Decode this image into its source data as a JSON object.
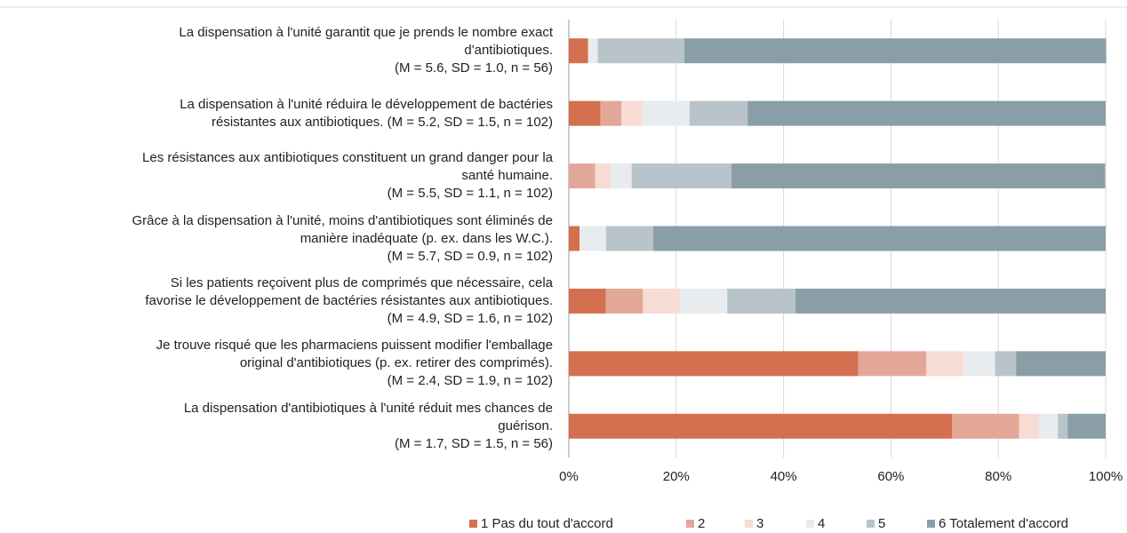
{
  "chart_data": {
    "type": "stacked_bar_horizontal",
    "categories": [
      "La dispensation à l'unité garantit que je prends le nombre exact\nd'antibiotiques.\n(M = 5.6, SD = 1.0, n = 56)",
      "La dispensation à l'unité réduira le développement de bactéries\nrésistantes aux antibiotiques. (M = 5.2, SD = 1.5, n = 102)",
      "Les résistances aux antibiotiques constituent un grand danger pour la\nsanté humaine.\n(M = 5.5, SD = 1.1, n = 102)",
      "Grâce à la dispensation à l'unité, moins d'antibiotiques sont éliminés de\nmanière inadéquate (p. ex. dans les W.C.).\n(M = 5.7, SD = 0.9, n = 102)",
      "Si les patients reçoivent plus de comprimés que nécessaire, cela\nfavorise le développement de bactéries résistantes aux antibiotiques.\n(M = 4.9, SD = 1.6, n = 102)",
      "Je trouve risqué que les pharmaciens puissent modifier l'emballage\noriginal d'antibiotiques (p. ex. retirer des comprimés).\n(M = 2.4, SD = 1.9, n = 102)",
      "La dispensation d'antibiotiques à l'unité réduit mes chances de\nguérison.\n(M = 1.7, SD = 1.5, n = 56)"
    ],
    "series": [
      {
        "name": "1 Pas du tout d'accord",
        "color": "#d4704f",
        "values": [
          3.6,
          5.9,
          0,
          2.0,
          6.9,
          53.9,
          71.4
        ]
      },
      {
        "name": "2",
        "color": "#e3a797",
        "values": [
          0,
          3.9,
          4.9,
          0,
          6.9,
          12.7,
          12.5
        ]
      },
      {
        "name": "3",
        "color": "#f7dcd5",
        "values": [
          0,
          3.9,
          2.9,
          0,
          6.9,
          6.9,
          3.6
        ]
      },
      {
        "name": "4",
        "color": "#e9ecee",
        "values": [
          1.8,
          8.8,
          3.9,
          4.9,
          8.8,
          5.9,
          3.6
        ]
      },
      {
        "name": "5",
        "color": "#b8c4ca",
        "values": [
          16.1,
          10.8,
          18.6,
          8.8,
          12.7,
          3.9,
          1.8
        ]
      },
      {
        "name": "6 Totalement d'accord",
        "color": "#8a9ea8",
        "values": [
          78.6,
          66.7,
          69.6,
          84.3,
          57.8,
          16.7,
          7.1
        ]
      }
    ],
    "xlim": [
      0,
      100
    ],
    "xticks": [
      {
        "value": 0,
        "label": "0%"
      },
      {
        "value": 20,
        "label": "20%"
      },
      {
        "value": 40,
        "label": "40%"
      },
      {
        "value": 60,
        "label": "60%"
      },
      {
        "value": 80,
        "label": "80%"
      },
      {
        "value": 100,
        "label": "100%"
      }
    ],
    "grid": true,
    "legend": "bottom"
  }
}
